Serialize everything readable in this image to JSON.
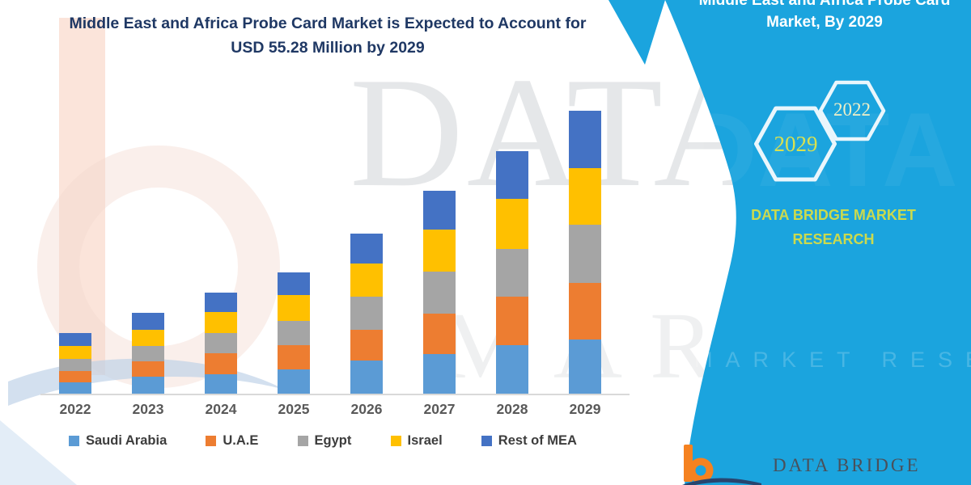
{
  "title": {
    "line1": "Middle East and Africa Probe Card Market is Expected to Account for",
    "line2": "USD 55.28 Million by 2029"
  },
  "panel": {
    "header_line1": "Middle East and Africa Probe Card",
    "header_line2": "Market, By 2029",
    "hexagon_large_label": "2029",
    "hexagon_small_label": "2022",
    "brand_line1": "DATA BRIDGE MARKET",
    "brand_line2": "RESEARCH",
    "watermark_text": "MARKET RESEARCH",
    "ghost_text": "DATA BRIDGE",
    "colors": {
      "background": "#1BA4DE",
      "hexagon_outline": "#EAF6FC",
      "brand_text": "#CBDA4E",
      "hexagon_large_text": "#D9E14F",
      "hexagon_small_text": "#EFEFC6"
    }
  },
  "watermark": {
    "line1": "DATA B",
    "line2": "MARKE"
  },
  "footer_logo": {
    "text": "DATA BRIDGE",
    "b_color": "#F58220",
    "swoosh_color": "#27456F"
  },
  "chart_data": {
    "type": "bar",
    "stacked": true,
    "unit": "USD Million",
    "title": "Middle East and Africa Probe Card Market is Expected to Account for USD 55.28 Million by 2029",
    "highlight_total_2029": 55.28,
    "categories": [
      "2022",
      "2023",
      "2024",
      "2025",
      "2026",
      "2027",
      "2028",
      "2029"
    ],
    "series": [
      {
        "name": "Saudi Arabia",
        "color": "#5B9BD5",
        "values": [
          2.2,
          3.3,
          3.8,
          4.7,
          6.5,
          7.7,
          9.5,
          10.6
        ]
      },
      {
        "name": "U.A.E",
        "color": "#ED7D31",
        "values": [
          2.2,
          3.0,
          4.1,
          4.7,
          6.0,
          8.0,
          9.5,
          11.1
        ]
      },
      {
        "name": "Egypt",
        "color": "#A5A5A5",
        "values": [
          2.4,
          3.1,
          4.0,
          4.8,
          6.5,
          8.1,
          9.3,
          11.3
        ]
      },
      {
        "name": "Israel",
        "color": "#FFC000",
        "values": [
          2.5,
          3.1,
          4.0,
          5.1,
          6.4,
          8.2,
          9.7,
          11.0
        ]
      },
      {
        "name": "Rest of MEA",
        "color": "#4472C4",
        "values": [
          2.5,
          3.3,
          3.8,
          4.4,
          5.8,
          7.6,
          9.4,
          11.28
        ]
      }
    ],
    "xlabel": "",
    "ylabel": "",
    "y_axis_visible": false,
    "gridlines": false,
    "legend_position": "bottom"
  }
}
